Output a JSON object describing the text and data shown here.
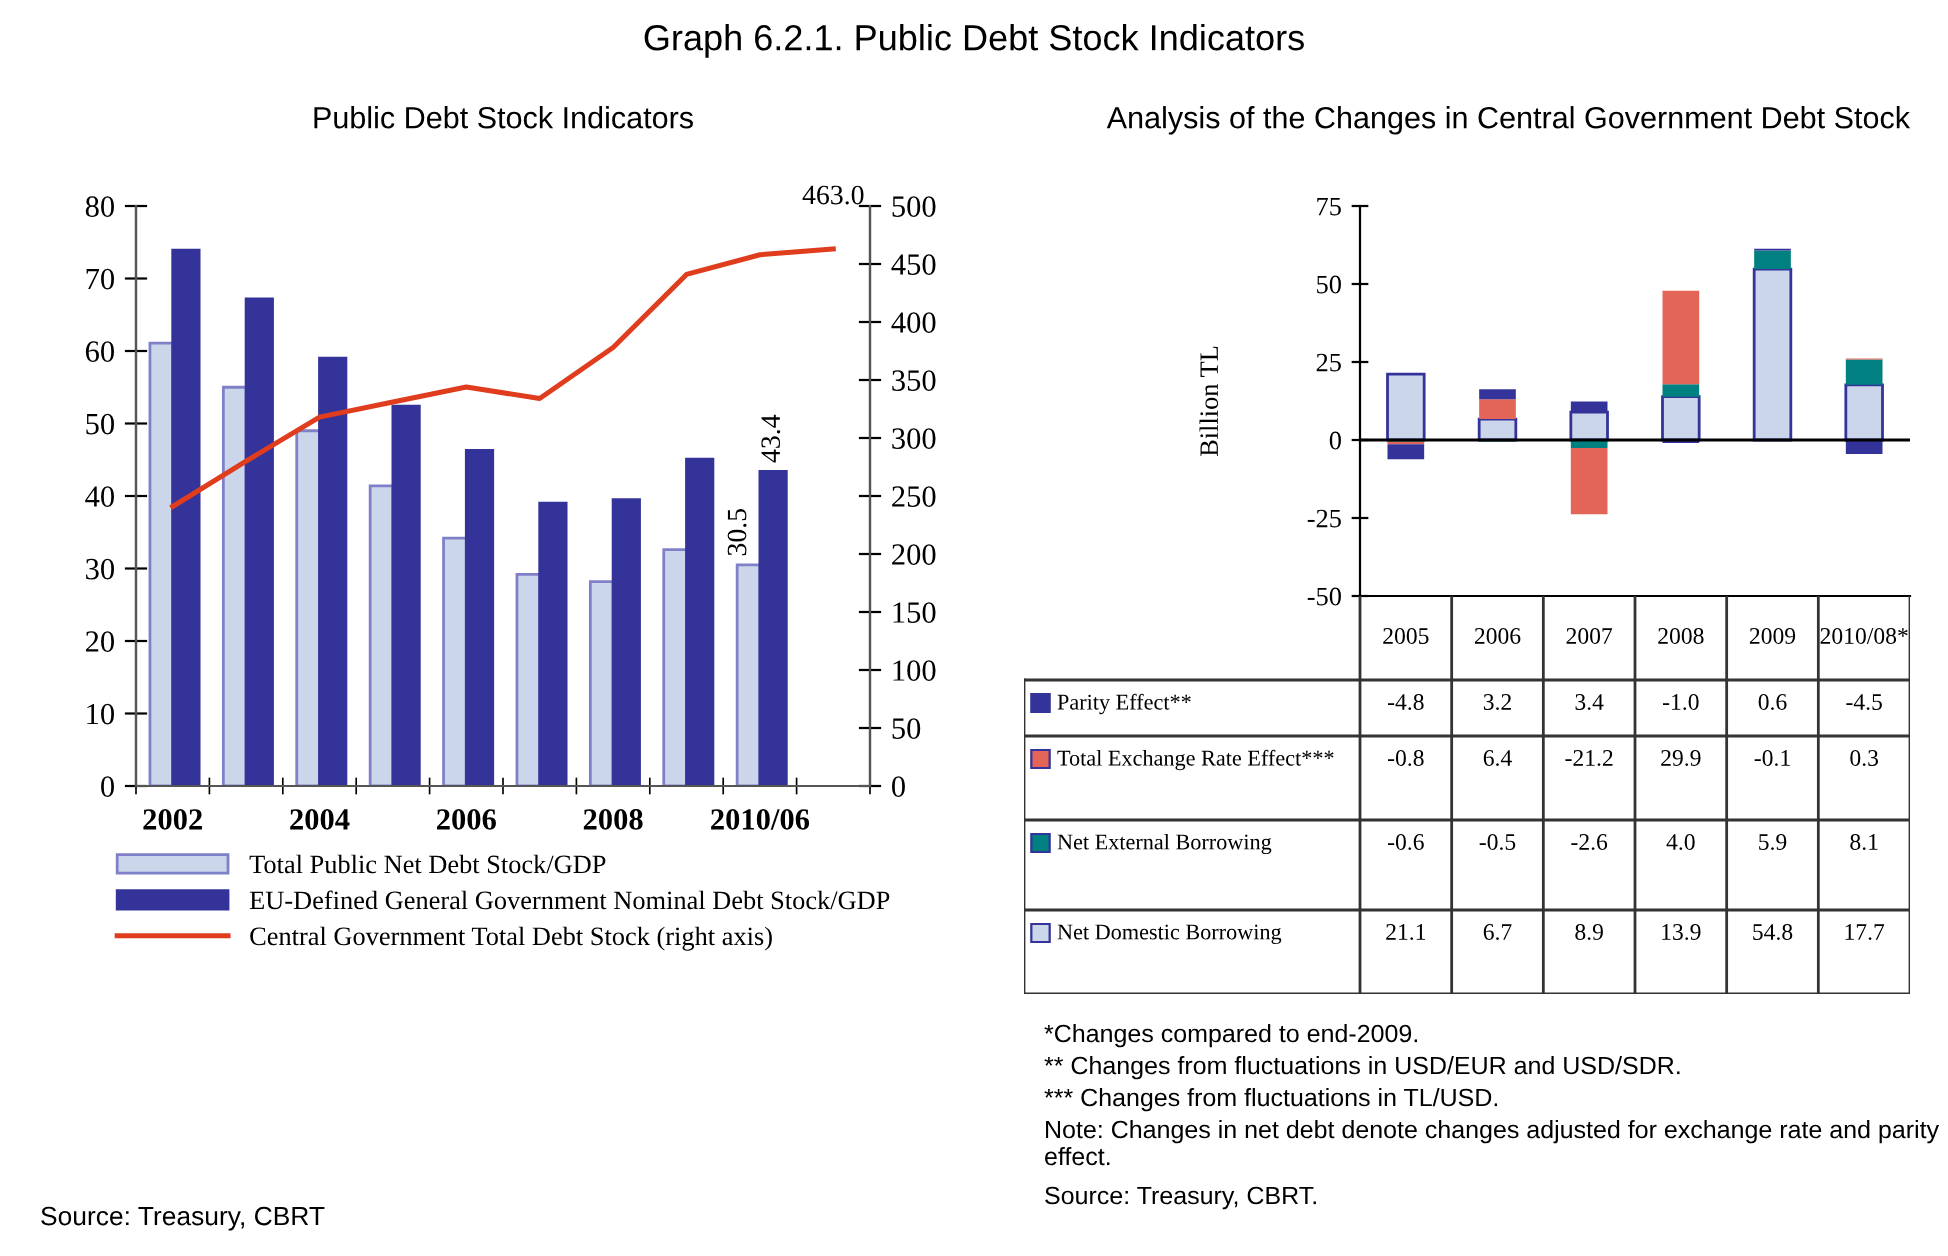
{
  "chart_data": [
    {
      "type": "bar",
      "title": "Public Debt Stock Indicators",
      "categories": [
        "2002",
        null,
        "2004",
        null,
        "2006",
        null,
        "2008",
        null,
        "2010/06",
        null
      ],
      "series": [
        {
          "name": "Total Public Net Debt Stock/GDP",
          "color": "#ccd6ea",
          "values": [
            61.1,
            55.0,
            49.0,
            41.4,
            34.2,
            29.2,
            28.2,
            32.6,
            30.5,
            null
          ],
          "value_labels": [
            null,
            null,
            null,
            null,
            null,
            null,
            null,
            null,
            "30.5",
            null
          ]
        },
        {
          "name": "EU-Defined General Government Nominal Debt Stock/GDP",
          "color": "#333399",
          "values": [
            73.9,
            67.2,
            59.0,
            52.4,
            46.3,
            39.0,
            39.5,
            45.1,
            43.4,
            null
          ],
          "value_labels": [
            null,
            null,
            null,
            null,
            null,
            null,
            null,
            null,
            "43.4",
            null
          ]
        },
        {
          "name": "Central Government Total Debt Stock (right axis)",
          "type": "line",
          "axis": "y2",
          "color": "#e03c1e",
          "values": [
            241,
            280,
            318,
            331,
            344,
            334,
            378,
            441,
            458,
            463.0
          ],
          "value_labels": [
            null,
            null,
            null,
            null,
            null,
            null,
            null,
            null,
            null,
            "463.0"
          ]
        }
      ],
      "ylim": [
        0,
        80
      ],
      "yticks": [
        0,
        10,
        20,
        30,
        40,
        50,
        60,
        70,
        80
      ],
      "y2lim": [
        0,
        500
      ],
      "y2ticks": [
        0,
        50,
        100,
        150,
        200,
        250,
        300,
        350,
        400,
        450,
        500
      ],
      "grid": false,
      "legend": "bottom",
      "annotations": [
        "Graph 6.2.1. Public Debt Stock Indicators",
        "Source: Treasury, CBRT"
      ]
    },
    {
      "type": "bar",
      "title": "Analysis of the Changes in Central Government Debt Stock",
      "ylabel": "Billion TL",
      "categories": [
        "2005",
        "2006",
        "2007",
        "2008",
        "2009",
        "2010/08*"
      ],
      "stacked": true,
      "legend": "bottom",
      "series": [
        {
          "name": "Net Domestic Borrowing",
          "color": "#ccd6ea",
          "values": [
            21.1,
            6.7,
            8.9,
            13.9,
            54.8,
            17.7
          ],
          "value_labels": [
            "21.1",
            "6.7",
            "8.9",
            "13.9",
            "54.8",
            "17.7"
          ]
        },
        {
          "name": "Net External Borrowing",
          "color": "#008080",
          "values": [
            -0.6,
            -0.5,
            -2.6,
            4.0,
            5.9,
            8.1
          ],
          "value_labels": [
            "-0.6",
            "-0.5",
            "-2.6",
            "4.0",
            "5.9",
            "8.1"
          ]
        },
        {
          "name": "Total Exchange Rate Effect***",
          "color": "#e36558",
          "values": [
            -0.8,
            6.4,
            -21.2,
            29.9,
            -0.1,
            0.3
          ],
          "value_labels": [
            "-0.8",
            "6.4",
            "-21.2",
            "29.9",
            "-0.1",
            "0.3"
          ]
        },
        {
          "name": "Parity Effect**",
          "color": "#333399",
          "values": [
            -4.8,
            3.2,
            3.4,
            -1.0,
            0.6,
            -4.5
          ],
          "value_labels": [
            "-4.8",
            "3.2",
            "3.4",
            "-1.0",
            "0.6",
            "-4.5"
          ]
        }
      ],
      "ylim": [
        -50,
        75
      ],
      "yticks": [
        -50,
        -25,
        0,
        25,
        50,
        75
      ],
      "grid": false,
      "ref_lines": [
        {
          "axis": "y",
          "value": 0,
          "color": "#000000"
        }
      ],
      "annotations": [
        "*Changes compared to end-2009.",
        "** Changes from fluctuations in USD/EUR and USD/SDR.",
        "*** Changes from fluctuations in TL/USD.",
        "Note: Changes in net debt denote changes adjusted for exchange rate and parity effect.",
        "Source: Treasury, CBRT."
      ]
    }
  ]
}
